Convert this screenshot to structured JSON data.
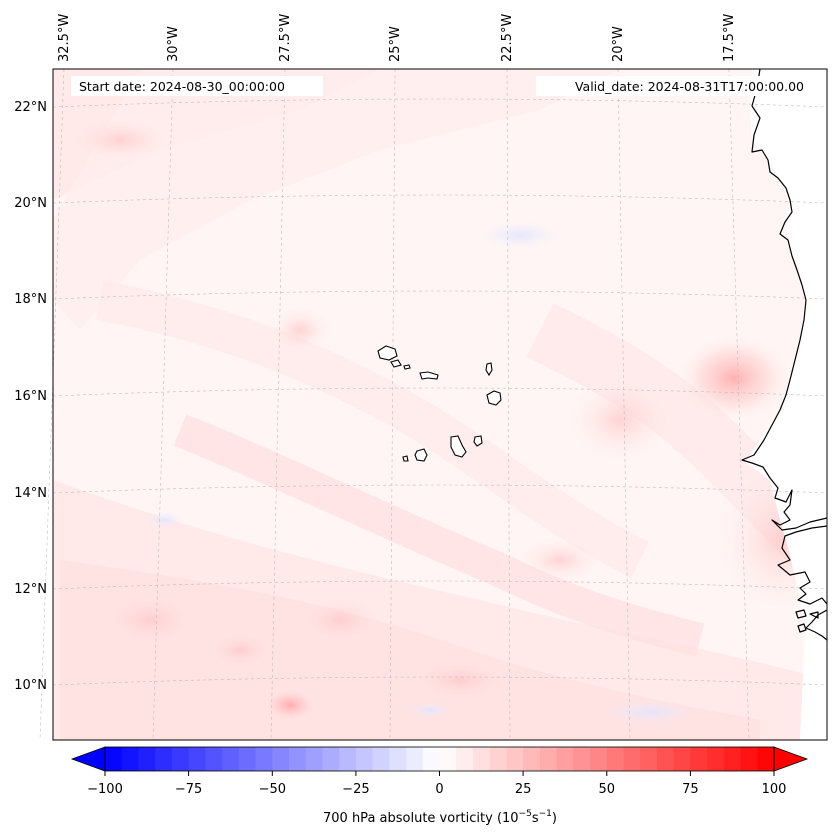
{
  "map": {
    "start_date_text": "Start date: 2024-08-30_00:00:00",
    "valid_date_text": "Valid_date: 2024-08-31T17:00:00.00",
    "field": "700 hPa absolute vorticity",
    "lon_labels": [
      "32.5°W",
      "30°W",
      "27.5°W",
      "25°W",
      "22.5°W",
      "20°W",
      "17.5°W"
    ],
    "lat_labels": [
      "22°N",
      "20°N",
      "18°N",
      "16°N",
      "14°N",
      "12°N",
      "10°N"
    ],
    "extent": {
      "lon_min": -33,
      "lon_max": -16,
      "lat_min": 8.9,
      "lat_max": 22.7
    },
    "colors": {
      "low": "#0000ff",
      "mid": "#ffffff",
      "high": "#ff0000",
      "coastline": "#000000"
    }
  },
  "colorbar": {
    "label_main": "700 hPa absolute vorticity (10",
    "label_exp1": "−5",
    "label_mid": "s",
    "label_exp2": "−1",
    "label_close": ")",
    "min": -100,
    "max": 100,
    "step": 5,
    "ticks": [
      "−100",
      "−75",
      "−50",
      "−25",
      "0",
      "25",
      "50",
      "75",
      "100"
    ],
    "extend": "both"
  }
}
